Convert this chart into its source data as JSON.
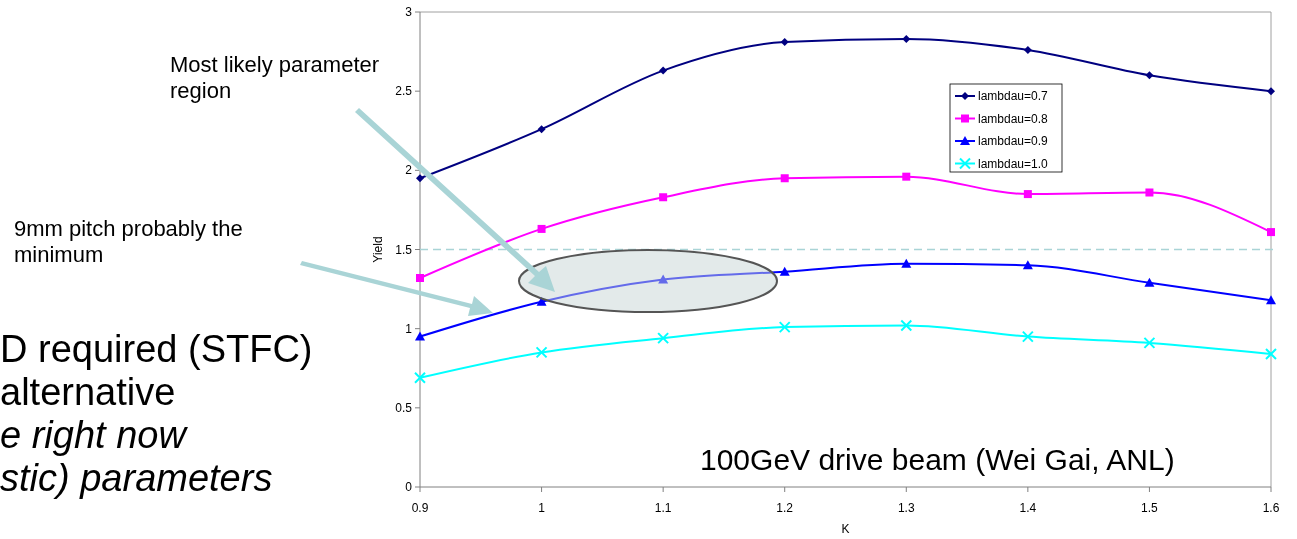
{
  "chart_data": {
    "type": "line",
    "xlabel": "K",
    "ylabel": "Yield",
    "x": [
      0.9,
      1.0,
      1.1,
      1.2,
      1.3,
      1.4,
      1.5,
      1.6
    ],
    "series": [
      {
        "name": "lambdau=0.7",
        "color": "#000080",
        "marker": "diamond",
        "values": [
          1.95,
          2.26,
          2.63,
          2.81,
          2.83,
          2.76,
          2.6,
          2.5
        ]
      },
      {
        "name": "lambdau=0.8",
        "color": "#ff00ff",
        "marker": "square",
        "values": [
          1.32,
          1.63,
          1.83,
          1.95,
          1.96,
          1.85,
          1.86,
          1.61
        ]
      },
      {
        "name": "lambdau=0.9",
        "color": "#0000ff",
        "marker": "triangle",
        "values": [
          0.95,
          1.17,
          1.31,
          1.36,
          1.41,
          1.4,
          1.29,
          1.18
        ]
      },
      {
        "name": "lambdau=1.0",
        "color": "#00ffff",
        "marker": "cross",
        "values": [
          0.69,
          0.85,
          0.94,
          1.01,
          1.02,
          0.95,
          0.91,
          0.84
        ]
      }
    ],
    "xlim": [
      0.9,
      1.6
    ],
    "xticks": [
      0.9,
      1,
      1.1,
      1.2,
      1.3,
      1.4,
      1.5,
      1.6
    ],
    "ylim": [
      0,
      3
    ],
    "yticks": [
      0,
      0.5,
      1,
      1.5,
      2,
      2.5,
      3
    ],
    "ref_lines": [
      {
        "axis": "y",
        "value": 1.5,
        "color": "#a9d4d6",
        "line_style": "dashed"
      }
    ],
    "legend": "top right",
    "grid": false,
    "annotations": [
      "Most likely parameter region",
      "9mm pitch probably the minimum",
      "100GeV drive beam (Wei Gai, ANL)",
      "D required (STFC)",
      "alternative",
      "e right now",
      "stic) parameters"
    ]
  }
}
